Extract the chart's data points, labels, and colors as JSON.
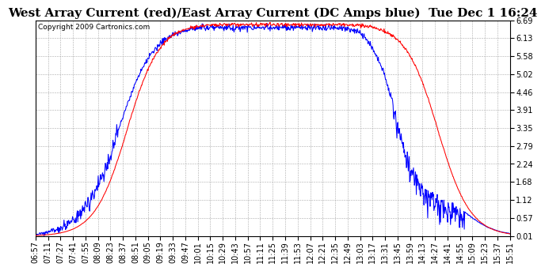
{
  "title": "West Array Current (red)/East Array Current (DC Amps blue)  Tue Dec 1 16:24",
  "copyright": "Copyright 2009 Cartronics.com",
  "yticks": [
    0.01,
    0.57,
    1.12,
    1.68,
    2.24,
    2.79,
    3.35,
    3.91,
    4.46,
    5.02,
    5.58,
    6.13,
    6.69
  ],
  "ylim": [
    0.01,
    6.69
  ],
  "xtick_labels": [
    "06:57",
    "07:11",
    "07:27",
    "07:41",
    "07:55",
    "08:09",
    "08:23",
    "08:37",
    "08:51",
    "09:05",
    "09:19",
    "09:33",
    "09:47",
    "10:01",
    "10:15",
    "10:29",
    "10:43",
    "10:57",
    "11:11",
    "11:25",
    "11:39",
    "11:53",
    "12:07",
    "12:21",
    "12:35",
    "12:49",
    "13:03",
    "13:17",
    "13:31",
    "13:45",
    "13:59",
    "14:13",
    "14:27",
    "14:41",
    "14:55",
    "15:09",
    "15:23",
    "15:37",
    "15:51"
  ],
  "red_color": "#FF0000",
  "blue_color": "#0000FF",
  "grid_color": "#AAAAAA",
  "bg_color": "#FFFFFF",
  "plot_bg_color": "#FFFFFF",
  "title_fontsize": 11,
  "copyright_fontsize": 6.5,
  "tick_fontsize": 7
}
